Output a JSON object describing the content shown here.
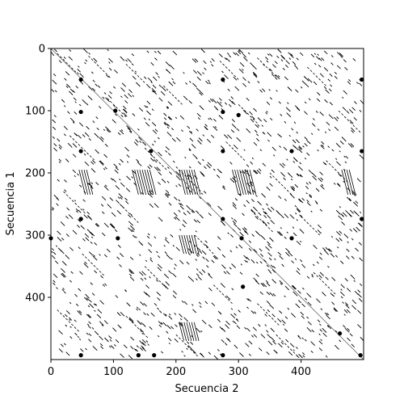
{
  "chart_data": {
    "type": "heatmap",
    "subtype": "dot-plot",
    "title": "",
    "xlabel": "Secuencia 2",
    "ylabel": "Secuencia 1",
    "xlim": [
      0,
      500
    ],
    "ylim": [
      500,
      0
    ],
    "y_axis_inverted": true,
    "x_ticks": [
      0,
      100,
      200,
      300,
      400
    ],
    "y_ticks": [
      0,
      100,
      200,
      300,
      400
    ],
    "x_tick_labels": [
      "0",
      "100",
      "200",
      "300",
      "400"
    ],
    "y_tick_labels": [
      "0",
      "100",
      "200",
      "300",
      "400"
    ],
    "grid": false,
    "legend": "none",
    "colors": {
      "match": "#000000",
      "background": "#ffffff",
      "diagonal": "#555555"
    },
    "main_diagonal": {
      "x": [
        0,
        500
      ],
      "y": [
        0,
        500
      ]
    },
    "match_diagonals": [
      {
        "x": [
          10,
          40
        ],
        "y": [
          8,
          38
        ]
      },
      {
        "x": [
          60,
          95
        ],
        "y": [
          12,
          47
        ]
      },
      {
        "x": [
          120,
          150
        ],
        "y": [
          25,
          55
        ]
      },
      {
        "x": [
          270,
          300
        ],
        "y": [
          20,
          50
        ]
      },
      {
        "x": [
          330,
          360
        ],
        "y": [
          15,
          45
        ]
      },
      {
        "x": [
          410,
          440
        ],
        "y": [
          30,
          60
        ]
      },
      {
        "x": [
          30,
          70
        ],
        "y": [
          140,
          180
        ]
      },
      {
        "x": [
          150,
          185
        ],
        "y": [
          160,
          195
        ]
      },
      {
        "x": [
          200,
          240
        ],
        "y": [
          190,
          230
        ]
      },
      {
        "x": [
          280,
          310
        ],
        "y": [
          150,
          180
        ]
      },
      {
        "x": [
          350,
          385
        ],
        "y": [
          200,
          235
        ]
      },
      {
        "x": [
          440,
          475
        ],
        "y": [
          180,
          215
        ]
      },
      {
        "x": [
          20,
          55
        ],
        "y": [
          230,
          265
        ]
      },
      {
        "x": [
          110,
          140
        ],
        "y": [
          250,
          280
        ]
      },
      {
        "x": [
          230,
          260
        ],
        "y": [
          300,
          330
        ]
      },
      {
        "x": [
          320,
          355
        ],
        "y": [
          260,
          295
        ]
      },
      {
        "x": [
          400,
          430
        ],
        "y": [
          270,
          300
        ]
      },
      {
        "x": [
          50,
          85
        ],
        "y": [
          330,
          365
        ]
      },
      {
        "x": [
          150,
          185
        ],
        "y": [
          350,
          385
        ]
      },
      {
        "x": [
          260,
          290
        ],
        "y": [
          380,
          410
        ]
      },
      {
        "x": [
          330,
          365
        ],
        "y": [
          410,
          445
        ]
      },
      {
        "x": [
          420,
          455
        ],
        "y": [
          360,
          395
        ]
      },
      {
        "x": [
          10,
          45
        ],
        "y": [
          420,
          455
        ]
      },
      {
        "x": [
          120,
          155
        ],
        "y": [
          430,
          465
        ]
      },
      {
        "x": [
          200,
          235
        ],
        "y": [
          460,
          495
        ]
      },
      {
        "x": [
          360,
          395
        ],
        "y": [
          460,
          495
        ]
      },
      {
        "x": [
          460,
          495
        ],
        "y": [
          100,
          135
        ]
      },
      {
        "x": [
          90,
          120
        ],
        "y": [
          80,
          110
        ]
      },
      {
        "x": [
          300,
          330
        ],
        "y": [
          90,
          120
        ]
      },
      {
        "x": [
          180,
          210
        ],
        "y": [
          60,
          90
        ]
      }
    ],
    "dense_blocks": [
      {
        "x": [
          205,
          230
        ],
        "y": [
          195,
          235
        ]
      },
      {
        "x": [
          205,
          230
        ],
        "y": [
          300,
          330
        ]
      },
      {
        "x": [
          205,
          230
        ],
        "y": [
          440,
          470
        ]
      },
      {
        "x": [
          465,
          480
        ],
        "y": [
          195,
          235
        ]
      },
      {
        "x": [
          45,
          60
        ],
        "y": [
          195,
          235
        ]
      },
      {
        "x": [
          130,
          160
        ],
        "y": [
          195,
          235
        ]
      },
      {
        "x": [
          290,
          320
        ],
        "y": [
          195,
          235
        ]
      }
    ],
    "dark_spots": [
      {
        "x": 48,
        "y": 50
      },
      {
        "x": 48,
        "y": 102
      },
      {
        "x": 48,
        "y": 165
      },
      {
        "x": 48,
        "y": 274
      },
      {
        "x": 48,
        "y": 493
      },
      {
        "x": 103,
        "y": 100
      },
      {
        "x": 107,
        "y": 305
      },
      {
        "x": 275,
        "y": 50
      },
      {
        "x": 275,
        "y": 102
      },
      {
        "x": 275,
        "y": 165
      },
      {
        "x": 275,
        "y": 274
      },
      {
        "x": 275,
        "y": 493
      },
      {
        "x": 305,
        "y": 305
      },
      {
        "x": 307,
        "y": 383
      },
      {
        "x": 385,
        "y": 305
      },
      {
        "x": 0,
        "y": 305
      },
      {
        "x": 497,
        "y": 50
      },
      {
        "x": 497,
        "y": 165
      },
      {
        "x": 497,
        "y": 274
      },
      {
        "x": 462,
        "y": 458
      },
      {
        "x": 140,
        "y": 493
      },
      {
        "x": 165,
        "y": 493
      },
      {
        "x": 300,
        "y": 107
      },
      {
        "x": 160,
        "y": 165
      },
      {
        "x": 385,
        "y": 165
      },
      {
        "x": 495,
        "y": 493
      }
    ]
  }
}
